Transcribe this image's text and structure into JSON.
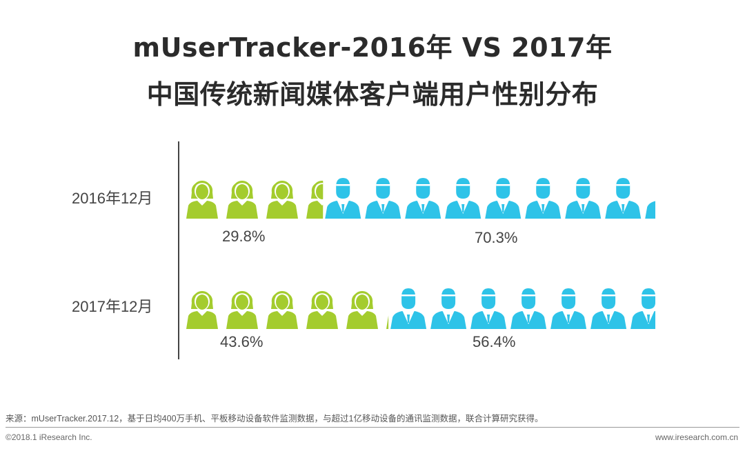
{
  "title_line1": "mUserTracker-2016年 VS 2017年",
  "title_line2": "中国传统新闻媒体客户端用户性别分布",
  "colors": {
    "female": "#a4cc2e",
    "male": "#2ec3e8",
    "text": "#444444"
  },
  "chart_data": {
    "type": "pictograph-bar",
    "categories": [
      "2016年12月",
      "2017年12月"
    ],
    "series": [
      {
        "values": [
          29.8,
          43.6
        ]
      },
      {
        "values": [
          70.3,
          56.4
        ]
      }
    ],
    "data_labels": [
      [
        "29.8%",
        "70.3%"
      ],
      [
        "43.6%",
        "56.4%"
      ]
    ]
  },
  "source": "来源：mUserTracker.2017.12，基于日均400万手机、平板移动设备软件监测数据，与超过1亿移动设备的通讯监测数据，联合计算研究获得。",
  "copyright": "©2018.1 iResearch Inc.",
  "website": "www.iresearch.com.cn"
}
